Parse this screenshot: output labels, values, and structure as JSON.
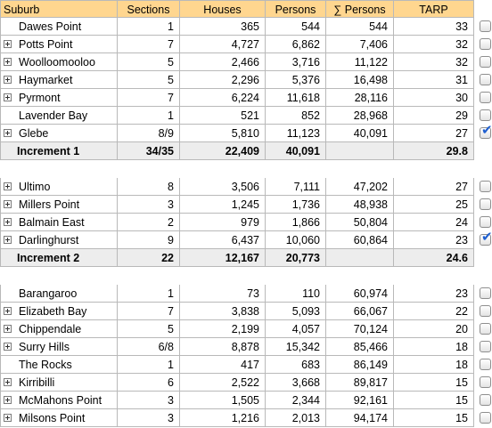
{
  "header": {
    "suburb": "Suburb",
    "sections": "Sections",
    "houses": "Houses",
    "persons": "Persons",
    "cum_persons": "∑ Persons",
    "tarp": "TARP"
  },
  "groups": [
    {
      "rows": [
        {
          "suburb": "Dawes Point",
          "sections": "1",
          "houses": "365",
          "persons": "544",
          "cum": "544",
          "tarp": "33",
          "expandable": false,
          "checked": false
        },
        {
          "suburb": "Potts Point",
          "sections": "7",
          "houses": "4,727",
          "persons": "6,862",
          "cum": "7,406",
          "tarp": "32",
          "expandable": true,
          "checked": false
        },
        {
          "suburb": "Woolloomooloo",
          "sections": "5",
          "houses": "2,466",
          "persons": "3,716",
          "cum": "11,122",
          "tarp": "32",
          "expandable": true,
          "checked": false
        },
        {
          "suburb": "Haymarket",
          "sections": "5",
          "houses": "2,296",
          "persons": "5,376",
          "cum": "16,498",
          "tarp": "31",
          "expandable": true,
          "checked": false
        },
        {
          "suburb": "Pyrmont",
          "sections": "7",
          "houses": "6,224",
          "persons": "11,618",
          "cum": "28,116",
          "tarp": "30",
          "expandable": true,
          "checked": false
        },
        {
          "suburb": "Lavender Bay",
          "sections": "1",
          "houses": "521",
          "persons": "852",
          "cum": "28,968",
          "tarp": "29",
          "expandable": false,
          "checked": false
        },
        {
          "suburb": "Glebe",
          "sections": "8/9",
          "houses": "5,810",
          "persons": "11,123",
          "cum": "40,091",
          "tarp": "27",
          "expandable": true,
          "checked": true
        }
      ],
      "total": {
        "label": "Increment 1",
        "sections": "34/35",
        "houses": "22,409",
        "persons": "40,091",
        "tarp": "29.8"
      }
    },
    {
      "rows": [
        {
          "suburb": "Ultimo",
          "sections": "8",
          "houses": "3,506",
          "persons": "7,111",
          "cum": "47,202",
          "tarp": "27",
          "expandable": true,
          "checked": false
        },
        {
          "suburb": "Millers Point",
          "sections": "3",
          "houses": "1,245",
          "persons": "1,736",
          "cum": "48,938",
          "tarp": "25",
          "expandable": true,
          "checked": false
        },
        {
          "suburb": "Balmain East",
          "sections": "2",
          "houses": "979",
          "persons": "1,866",
          "cum": "50,804",
          "tarp": "24",
          "expandable": true,
          "checked": false
        },
        {
          "suburb": "Darlinghurst",
          "sections": "9",
          "houses": "6,437",
          "persons": "10,060",
          "cum": "60,864",
          "tarp": "23",
          "expandable": true,
          "checked": true
        }
      ],
      "total": {
        "label": "Increment 2",
        "sections": "22",
        "houses": "12,167",
        "persons": "20,773",
        "tarp": "24.6"
      }
    },
    {
      "rows": [
        {
          "suburb": "Barangaroo",
          "sections": "1",
          "houses": "73",
          "persons": "110",
          "cum": "60,974",
          "tarp": "23",
          "expandable": false,
          "checked": false
        },
        {
          "suburb": "Elizabeth Bay",
          "sections": "7",
          "houses": "3,838",
          "persons": "5,093",
          "cum": "66,067",
          "tarp": "22",
          "expandable": true,
          "checked": false
        },
        {
          "suburb": "Chippendale",
          "sections": "5",
          "houses": "2,199",
          "persons": "4,057",
          "cum": "70,124",
          "tarp": "20",
          "expandable": true,
          "checked": false
        },
        {
          "suburb": "Surry Hills",
          "sections": "6/8",
          "houses": "8,878",
          "persons": "15,342",
          "cum": "85,466",
          "tarp": "18",
          "expandable": true,
          "checked": false
        },
        {
          "suburb": "The Rocks",
          "sections": "1",
          "houses": "417",
          "persons": "683",
          "cum": "86,149",
          "tarp": "18",
          "expandable": false,
          "checked": false
        },
        {
          "suburb": "Kirribilli",
          "sections": "6",
          "houses": "2,522",
          "persons": "3,668",
          "cum": "89,817",
          "tarp": "15",
          "expandable": true,
          "checked": false
        },
        {
          "suburb": "McMahons Point",
          "sections": "3",
          "houses": "1,505",
          "persons": "2,344",
          "cum": "92,161",
          "tarp": "15",
          "expandable": true,
          "checked": false
        },
        {
          "suburb": "Milsons Point",
          "sections": "3",
          "houses": "1,216",
          "persons": "2,013",
          "cum": "94,174",
          "tarp": "15",
          "expandable": true,
          "checked": false
        }
      ],
      "total": null
    }
  ]
}
